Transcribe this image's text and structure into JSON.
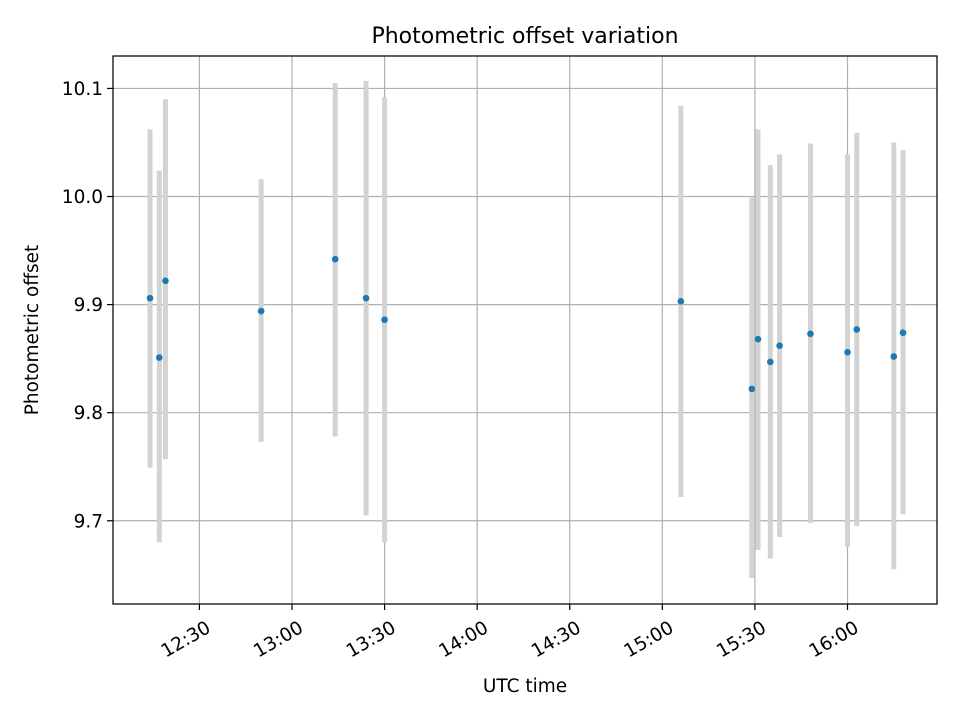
{
  "chart_data": {
    "type": "scatter",
    "title": "Photometric offset variation",
    "xlabel": "UTC time",
    "ylabel": "Photometric offset",
    "x_format": "HH:MM",
    "xlim": [
      "12:02",
      "16:29"
    ],
    "ylim": [
      9.623,
      10.13
    ],
    "xticks": [
      "12:30",
      "13:00",
      "13:30",
      "14:00",
      "14:30",
      "15:00",
      "15:30",
      "16:00"
    ],
    "yticks": [
      9.7,
      9.8,
      9.9,
      10.0,
      10.1
    ],
    "grid": true,
    "marker_color": "#1f77b4",
    "errorbar_color": "#d3d3d3",
    "points": [
      {
        "x": "12:14",
        "y": 9.906,
        "yerr_low": 9.749,
        "yerr_high": 10.062
      },
      {
        "x": "12:17",
        "y": 9.851,
        "yerr_low": 9.68,
        "yerr_high": 10.024
      },
      {
        "x": "12:19",
        "y": 9.922,
        "yerr_low": 9.757,
        "yerr_high": 10.09
      },
      {
        "x": "12:50",
        "y": 9.894,
        "yerr_low": 9.773,
        "yerr_high": 10.016
      },
      {
        "x": "13:14",
        "y": 9.942,
        "yerr_low": 9.778,
        "yerr_high": 10.105
      },
      {
        "x": "13:24",
        "y": 9.906,
        "yerr_low": 9.705,
        "yerr_high": 10.107
      },
      {
        "x": "13:30",
        "y": 9.886,
        "yerr_low": 9.68,
        "yerr_high": 10.092
      },
      {
        "x": "15:06",
        "y": 9.903,
        "yerr_low": 9.722,
        "yerr_high": 10.084
      },
      {
        "x": "15:29",
        "y": 9.822,
        "yerr_low": 9.647,
        "yerr_high": 9.999
      },
      {
        "x": "15:31",
        "y": 9.868,
        "yerr_low": 9.673,
        "yerr_high": 10.062
      },
      {
        "x": "15:35",
        "y": 9.847,
        "yerr_low": 9.665,
        "yerr_high": 10.029
      },
      {
        "x": "15:38",
        "y": 9.862,
        "yerr_low": 9.685,
        "yerr_high": 10.039
      },
      {
        "x": "15:48",
        "y": 9.873,
        "yerr_low": 9.698,
        "yerr_high": 10.049
      },
      {
        "x": "16:00",
        "y": 9.856,
        "yerr_low": 9.676,
        "yerr_high": 10.039
      },
      {
        "x": "16:03",
        "y": 9.877,
        "yerr_low": 9.695,
        "yerr_high": 10.059
      },
      {
        "x": "16:15",
        "y": 9.852,
        "yerr_low": 9.655,
        "yerr_high": 10.05
      },
      {
        "x": "16:18",
        "y": 9.874,
        "yerr_low": 9.706,
        "yerr_high": 10.043
      }
    ]
  }
}
